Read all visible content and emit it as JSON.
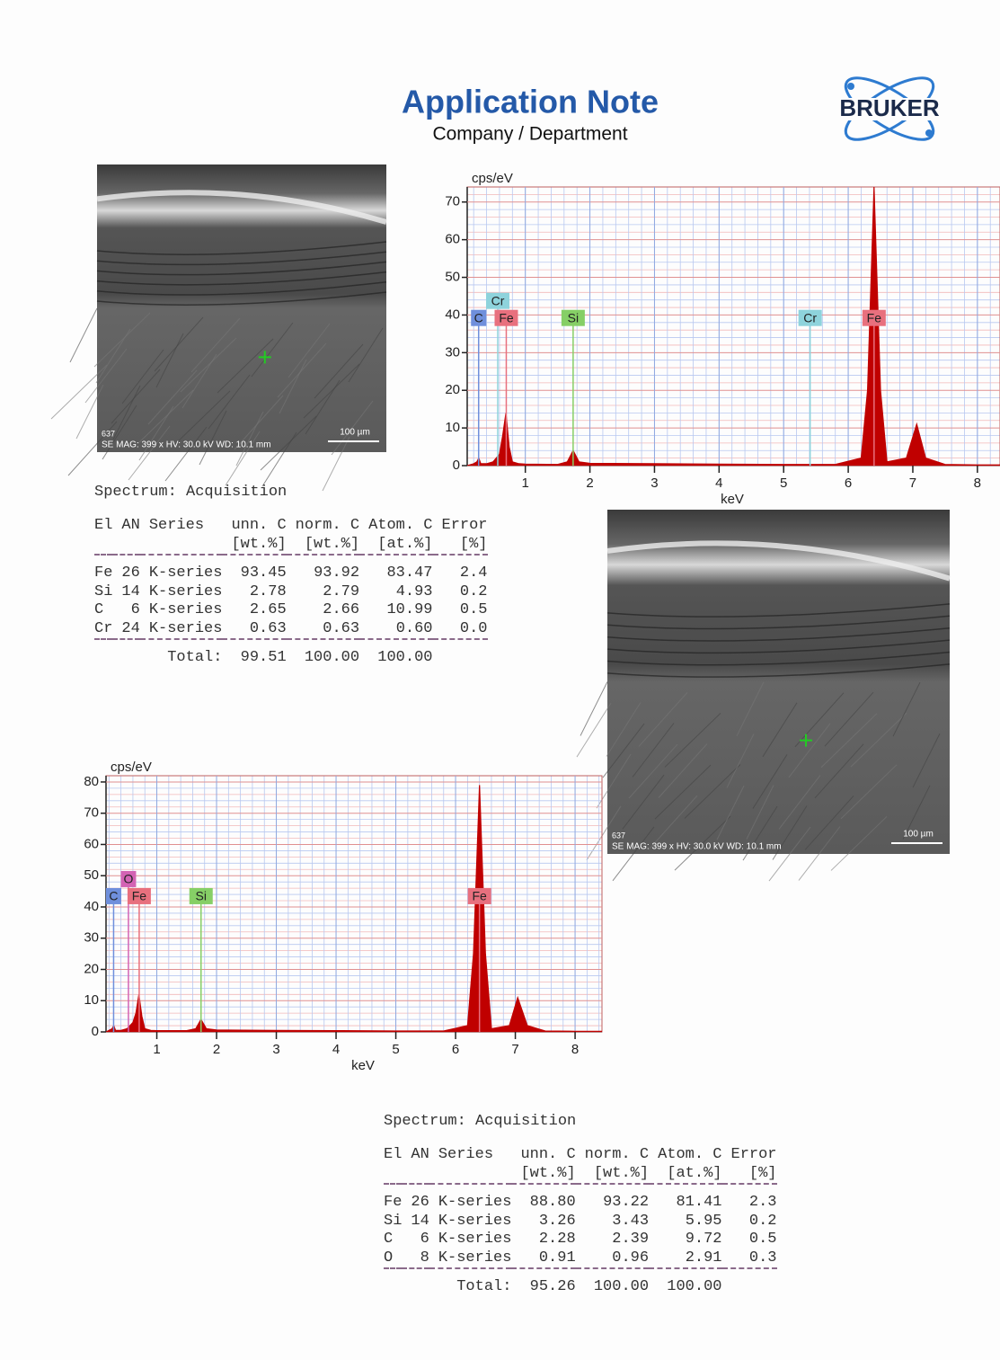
{
  "header": {
    "title": "Application Note",
    "subtitle": "Company / Department",
    "logo": "BRUKER"
  },
  "images": [
    {
      "id_label": "637",
      "info": "SE MAG: 399 x HV: 30.0 kV WD: 10.1 mm",
      "scale_bar": "100 µm"
    },
    {
      "id_label": "637",
      "info": "SE MAG: 399 x HV: 30.0 kV WD: 10.1 mm",
      "scale_bar": "100 µm"
    }
  ],
  "tables": [
    {
      "title": "Spectrum: Acquisition",
      "columns": [
        "El",
        "AN",
        "Series",
        "unn. C",
        "norm. C",
        "Atom. C",
        "Error"
      ],
      "units": [
        "[wt.%]",
        "[wt.%]",
        "[at.%]",
        "[%]"
      ],
      "rows": [
        [
          "Fe",
          "26",
          "K-series",
          "93.45",
          "93.92",
          "83.47",
          "2.4"
        ],
        [
          "Si",
          "14",
          "K-series",
          "2.78",
          "2.79",
          "4.93",
          "0.2"
        ],
        [
          "C",
          "6",
          "K-series",
          "2.65",
          "2.66",
          "10.99",
          "0.5"
        ],
        [
          "Cr",
          "24",
          "K-series",
          "0.63",
          "0.63",
          "0.60",
          "0.0"
        ]
      ],
      "total": {
        "label": "Total:",
        "values": [
          "99.51",
          "100.00",
          "100.00"
        ]
      }
    },
    {
      "title": "Spectrum: Acquisition",
      "columns": [
        "El",
        "AN",
        "Series",
        "unn. C",
        "norm. C",
        "Atom. C",
        "Error"
      ],
      "units": [
        "[wt.%]",
        "[wt.%]",
        "[at.%]",
        "[%]"
      ],
      "rows": [
        [
          "Fe",
          "26",
          "K-series",
          "88.80",
          "93.22",
          "81.41",
          "2.3"
        ],
        [
          "Si",
          "14",
          "K-series",
          "3.26",
          "3.43",
          "5.95",
          "0.2"
        ],
        [
          "C",
          "6",
          "K-series",
          "2.28",
          "2.39",
          "9.72",
          "0.5"
        ],
        [
          "O",
          "8",
          "K-series",
          "0.91",
          "0.96",
          "2.91",
          "0.3"
        ]
      ],
      "total": {
        "label": "Total:",
        "values": [
          "95.26",
          "100.00",
          "100.00"
        ]
      }
    }
  ],
  "chart_data": [
    {
      "type": "area",
      "x_label": "keV",
      "y_label": "cps/eV",
      "grid": true,
      "xlim": [
        0.1,
        8.35
      ],
      "ylim": [
        0,
        74
      ],
      "xticks": [
        1,
        2,
        3,
        4,
        5,
        6,
        7,
        8
      ],
      "yticks": [
        0,
        10,
        20,
        30,
        40,
        50,
        60,
        70
      ],
      "x": [
        0.1,
        0.2,
        0.25,
        0.28,
        0.31,
        0.4,
        0.5,
        0.55,
        0.6,
        0.65,
        0.7,
        0.75,
        0.8,
        0.9,
        1.0,
        1.5,
        1.65,
        1.74,
        1.83,
        2.0,
        3,
        4,
        5,
        5.8,
        6.2,
        6.3,
        6.4,
        6.5,
        6.6,
        6.9,
        7.06,
        7.2,
        7.5,
        8,
        8.35
      ],
      "series": [
        {
          "color": "#c00000",
          "values": [
            0,
            0.5,
            1,
            2,
            0.5,
            0.5,
            1,
            2,
            3,
            8,
            14,
            5,
            1,
            0.5,
            0.4,
            0.3,
            1,
            4,
            1,
            0.6,
            0.5,
            0.4,
            0.3,
            0.3,
            2,
            20,
            74,
            20,
            1,
            2,
            11,
            2,
            0.3,
            0.2,
            0.2
          ]
        }
      ],
      "markers": [
        {
          "label": "C",
          "x": 0.277,
          "color": "#6f8fdc"
        },
        {
          "label": "Cr",
          "x": 0.573,
          "color": "#8ed3dc"
        },
        {
          "label": "Fe",
          "x": 0.705,
          "color": "#e8707e"
        },
        {
          "label": "Si",
          "x": 1.74,
          "color": "#86cf66"
        },
        {
          "label": "Cr",
          "x": 5.41,
          "color": "#8ed3dc"
        },
        {
          "label": "Fe",
          "x": 6.4,
          "color": "#e8707e"
        }
      ]
    },
    {
      "type": "area",
      "x_label": "keV",
      "y_label": "cps/eV",
      "grid": true,
      "xlim": [
        0.15,
        8.45
      ],
      "ylim": [
        0,
        82
      ],
      "xticks": [
        1,
        2,
        3,
        4,
        5,
        6,
        7,
        8
      ],
      "yticks": [
        0,
        10,
        20,
        30,
        40,
        50,
        60,
        70,
        80
      ],
      "x": [
        0.15,
        0.2,
        0.25,
        0.28,
        0.31,
        0.4,
        0.5,
        0.55,
        0.6,
        0.65,
        0.7,
        0.75,
        0.8,
        0.9,
        1.0,
        1.5,
        1.65,
        1.74,
        1.83,
        2.0,
        3,
        4,
        5,
        5.8,
        6.2,
        6.3,
        6.4,
        6.5,
        6.6,
        6.9,
        7.04,
        7.2,
        7.5,
        8,
        8.45
      ],
      "series": [
        {
          "color": "#c00000",
          "values": [
            0,
            0.5,
            1,
            2,
            0.5,
            0.5,
            1,
            2,
            3,
            6,
            12,
            5,
            1,
            0.5,
            0.4,
            0.4,
            1,
            4,
            1,
            0.6,
            0.5,
            0.4,
            0.3,
            0.3,
            2,
            25,
            79,
            25,
            1,
            2,
            11,
            2,
            0.3,
            0.2,
            0.2
          ]
        }
      ],
      "markers": [
        {
          "label": "C",
          "x": 0.277,
          "color": "#6f8fdc"
        },
        {
          "label": "O",
          "x": 0.525,
          "color": "#d363b4"
        },
        {
          "label": "Fe",
          "x": 0.705,
          "color": "#e8707e"
        },
        {
          "label": "Si",
          "x": 1.74,
          "color": "#86cf66"
        },
        {
          "label": "Fe",
          "x": 6.4,
          "color": "#e8707e"
        }
      ]
    }
  ]
}
